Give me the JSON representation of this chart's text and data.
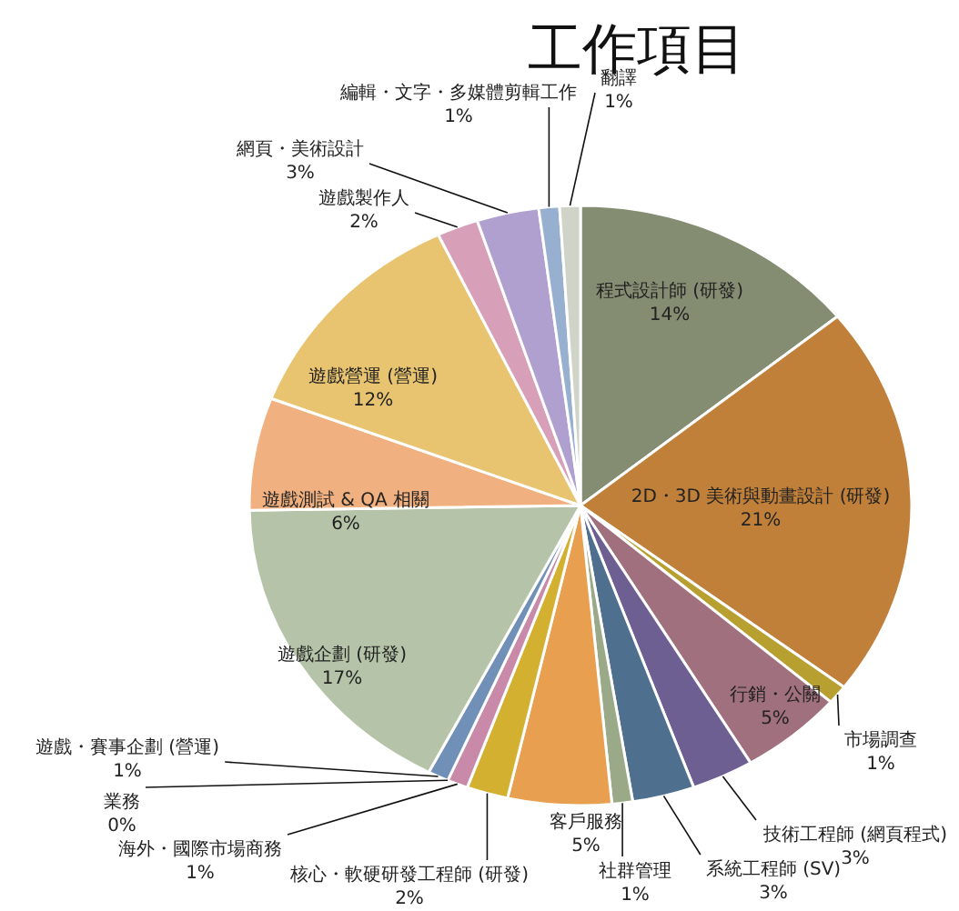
{
  "chart_data": {
    "type": "pie",
    "title": "工作項目",
    "categories": [
      "程式設計師 (研發)",
      "2D・3D 美術與動畫設計 (研發)",
      "市場調查",
      "行銷・公關",
      "技術工程師 (網頁程式)",
      "系統工程師 (SV)",
      "社群管理",
      "客戶服務",
      "核心・軟硬研發工程師 (研發)",
      "海外・國際市場商務",
      "業務",
      "遊戲・賽事企劃 (營運)",
      "遊戲企劃 (研發)",
      "遊戲測試 & QA 相關",
      "遊戲營運 (營運)",
      "遊戲製作人",
      "網頁・美術設計",
      "編輯・文字・多媒體剪輯工作",
      "翻譯"
    ],
    "values": [
      14,
      21,
      1,
      5,
      3,
      3,
      1,
      5,
      2,
      1,
      0,
      1,
      17,
      6,
      12,
      2,
      3,
      1,
      1
    ],
    "value_labels": [
      "14%",
      "21%",
      "1%",
      "5%",
      "3%",
      "3%",
      "1%",
      "5%",
      "2%",
      "1%",
      "0%",
      "1%",
      "17%",
      "6%",
      "12%",
      "2%",
      "3%",
      "1%",
      "1%"
    ],
    "colors": [
      "#848c72",
      "#c0803a",
      "#b8a030",
      "#a0707e",
      "#6e5f93",
      "#4f6f8f",
      "#9aaa88",
      "#e8a050",
      "#d4b030",
      "#c88aa8",
      null,
      "#7090b8",
      "#b5c4a8",
      "#f0b07f",
      "#e8c470",
      "#d8a0b8",
      "#b0a0d0",
      "#98b0d0",
      "#d0d4c8"
    ],
    "legend": false
  }
}
